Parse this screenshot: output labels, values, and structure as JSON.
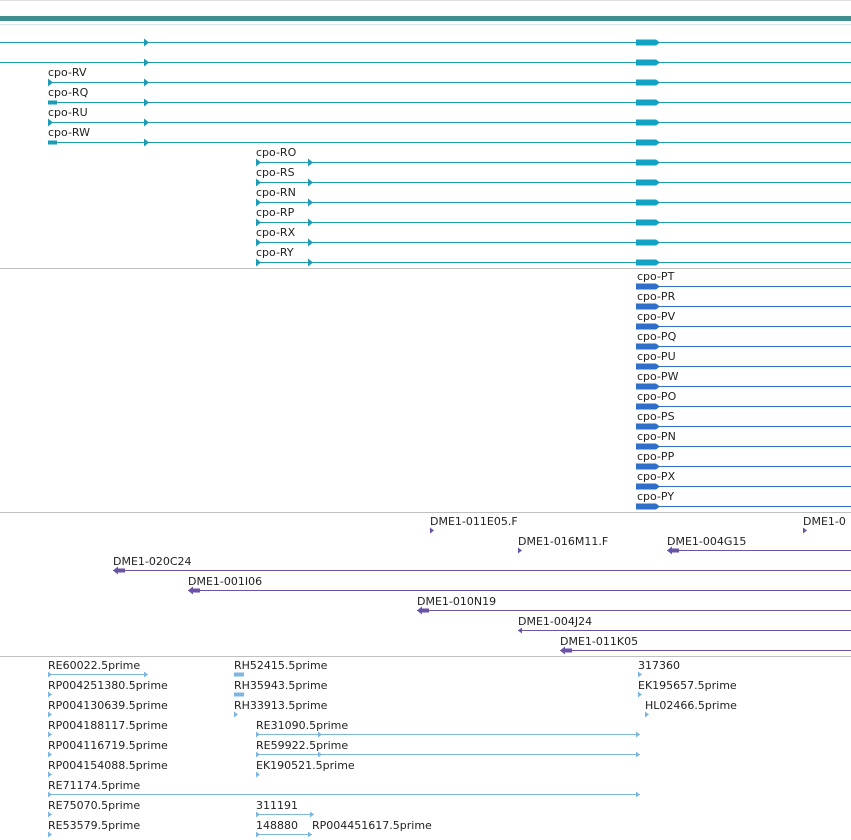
{
  "browser": {
    "colors": {
      "topbar": "#3f8f8f",
      "separator": "#c0c0c0",
      "cpo_r": "#1a9bb8",
      "cpo_r_exon": "#12a2c4",
      "cpo_p": "#2f6fc7",
      "cpo_p_line": "#2f6fc7",
      "dme1": "#6a52a6",
      "est": "#7db7df"
    },
    "tracks": {
      "cpo_r": {
        "rows": [
          {
            "label": ""
          },
          {
            "label": ""
          },
          {
            "label": "cpo-RV"
          },
          {
            "label": "cpo-RQ"
          },
          {
            "label": "cpo-RU"
          },
          {
            "label": "cpo-RW"
          },
          {
            "label": "cpo-RO"
          },
          {
            "label": "cpo-RS"
          },
          {
            "label": "cpo-RN"
          },
          {
            "label": "cpo-RP"
          },
          {
            "label": "cpo-RX"
          },
          {
            "label": "cpo-RY"
          }
        ]
      },
      "cpo_p": {
        "rows": [
          {
            "label": "cpo-PT"
          },
          {
            "label": "cpo-PR"
          },
          {
            "label": "cpo-PV"
          },
          {
            "label": "cpo-PQ"
          },
          {
            "label": "cpo-PU"
          },
          {
            "label": "cpo-PW"
          },
          {
            "label": "cpo-PO"
          },
          {
            "label": "cpo-PS"
          },
          {
            "label": "cpo-PN"
          },
          {
            "label": "cpo-PP"
          },
          {
            "label": "cpo-PX"
          },
          {
            "label": "cpo-PY"
          }
        ]
      },
      "dme1": {
        "features": [
          {
            "label": "DME1-011E05.F"
          },
          {
            "label": "DME1-0"
          },
          {
            "label": "DME1-016M11.F"
          },
          {
            "label": "DME1-004G15"
          },
          {
            "label": "DME1-020C24"
          },
          {
            "label": "DME1-001I06"
          },
          {
            "label": "DME1-010N19"
          },
          {
            "label": "DME1-004J24"
          },
          {
            "label": "DME1-011K05"
          }
        ]
      },
      "est": {
        "features": [
          {
            "label": "RE60022.5prime"
          },
          {
            "label": "RP004251380.5prime"
          },
          {
            "label": "RP004130639.5prime"
          },
          {
            "label": "RP004188117.5prime"
          },
          {
            "label": "RP004116719.5prime"
          },
          {
            "label": "RP004154088.5prime"
          },
          {
            "label": "RE71174.5prime"
          },
          {
            "label": "RE75070.5prime"
          },
          {
            "label": "RE53579.5prime"
          },
          {
            "label": "RH52415.5prime"
          },
          {
            "label": "RH35943.5prime"
          },
          {
            "label": "RH33913.5prime"
          },
          {
            "label": "RE31090.5prime"
          },
          {
            "label": "RE59922.5prime"
          },
          {
            "label": "EK190521.5prime"
          },
          {
            "label": "311191"
          },
          {
            "label": "148880"
          },
          {
            "label": "RP004451617.5prime"
          },
          {
            "label": "317360"
          },
          {
            "label": "EK195657.5prime"
          },
          {
            "label": "HL02466.5prime"
          }
        ]
      }
    }
  }
}
